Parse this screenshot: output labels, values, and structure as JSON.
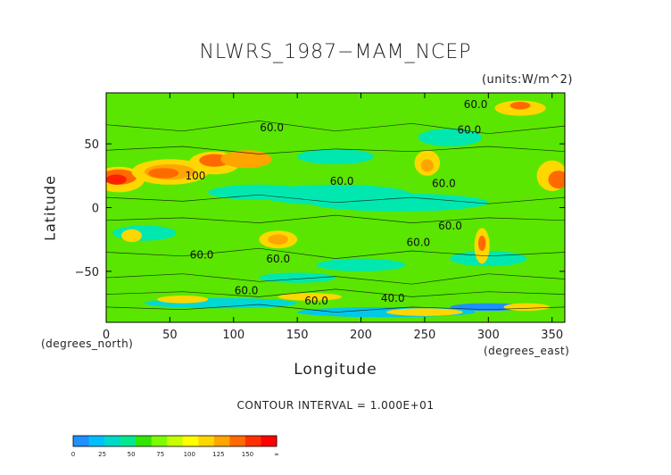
{
  "chart_data": {
    "type": "heatmap",
    "title": "NLWRS_1987−MAM_NCEP",
    "units": "(units:W/m^2)",
    "xlabel": "Longitude",
    "ylabel": "Latitude",
    "x_unit": "(degrees_east)",
    "y_unit": "(degrees_north)",
    "xlim": [
      0,
      360
    ],
    "ylim": [
      -90,
      90
    ],
    "x_ticks": [
      "0",
      "50",
      "100",
      "150",
      "200",
      "250",
      "300",
      "350"
    ],
    "y_ticks": [
      "50",
      "0",
      "−50"
    ],
    "contour_interval": "CONTOUR INTERVAL = 1.000E+01",
    "contour_labels": [
      {
        "text": "60.0",
        "lon": 290,
        "lat": 78
      },
      {
        "text": "60.0",
        "lon": 285,
        "lat": 58
      },
      {
        "text": "60.0",
        "lon": 130,
        "lat": 60
      },
      {
        "text": "60.0",
        "lon": 185,
        "lat": 18
      },
      {
        "text": "60.0",
        "lon": 265,
        "lat": 16
      },
      {
        "text": "60.0",
        "lon": 245,
        "lat": -30
      },
      {
        "text": "60.0",
        "lon": 270,
        "lat": -17
      },
      {
        "text": "60.0",
        "lon": 75,
        "lat": -40
      },
      {
        "text": "60.0",
        "lon": 135,
        "lat": -43
      },
      {
        "text": "60.0",
        "lon": 110,
        "lat": -68
      },
      {
        "text": "60.0",
        "lon": 165,
        "lat": -76
      },
      {
        "text": "40.0",
        "lon": 225,
        "lat": -74
      },
      {
        "text": "100",
        "lon": 70,
        "lat": 22
      }
    ],
    "colorbar": {
      "ticks": [
        "0",
        "25",
        "50",
        "75",
        "100",
        "125",
        "150",
        "∞"
      ],
      "colors": [
        "#1e90ff",
        "#00bfff",
        "#00d8c8",
        "#00e890",
        "#32e600",
        "#7cfc00",
        "#c8ff00",
        "#ffff00",
        "#ffd700",
        "#ffa500",
        "#ff6a00",
        "#ff3000",
        "#ff0000"
      ]
    }
  }
}
